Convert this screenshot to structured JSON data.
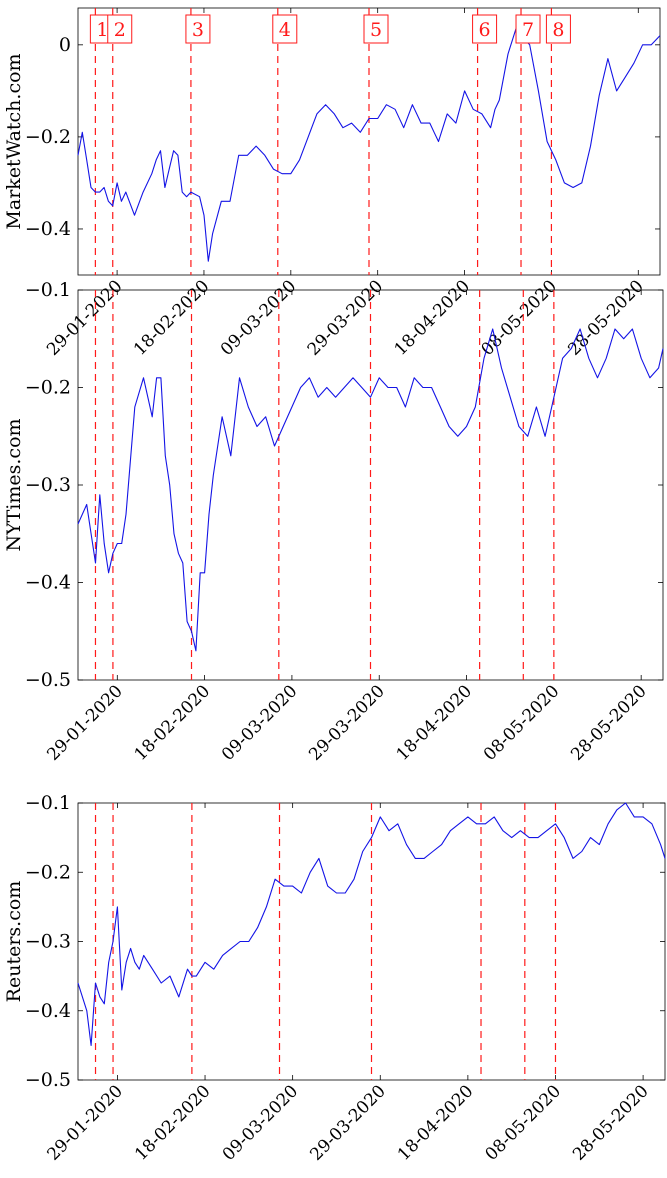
{
  "chart_data": [
    {
      "type": "line",
      "ylabel": "MarketWatch.com",
      "ylim": [
        -0.5,
        0.08
      ],
      "yticks": [
        0,
        -0.2,
        -0.4
      ],
      "ytick_labels": [
        "0",
        "−0.2",
        "−0.4"
      ],
      "xlim": [
        "2020-01-20",
        "2020-06-02"
      ],
      "xticks": [
        "2020-01-29",
        "2020-02-18",
        "2020-03-09",
        "2020-03-29",
        "2020-04-18",
        "2020-05-08",
        "2020-05-28"
      ],
      "xtick_labels": [
        "29-01-2020",
        "18-02-2020",
        "09-03-2020",
        "29-03-2020",
        "18-04-2020",
        "08-05-2020",
        "28-05-2020"
      ],
      "events": [
        {
          "date": "2020-01-24",
          "label": "1"
        },
        {
          "date": "2020-01-28",
          "label": "2"
        },
        {
          "date": "2020-02-15",
          "label": "3"
        },
        {
          "date": "2020-03-06",
          "label": "4"
        },
        {
          "date": "2020-03-27",
          "label": "5"
        },
        {
          "date": "2020-04-21",
          "label": "6"
        },
        {
          "date": "2020-05-01",
          "label": "7"
        },
        {
          "date": "2020-05-08",
          "label": "8"
        }
      ],
      "series": [
        {
          "x": [
            "2020-01-20",
            "2020-01-21",
            "2020-01-22",
            "2020-01-23",
            "2020-01-24",
            "2020-01-25",
            "2020-01-26",
            "2020-01-27",
            "2020-01-28",
            "2020-01-29",
            "2020-01-30",
            "2020-01-31",
            "2020-02-02",
            "2020-02-04",
            "2020-02-06",
            "2020-02-07",
            "2020-02-08",
            "2020-02-09",
            "2020-02-10",
            "2020-02-11",
            "2020-02-12",
            "2020-02-13",
            "2020-02-14",
            "2020-02-15",
            "2020-02-17",
            "2020-02-18",
            "2020-02-19",
            "2020-02-20",
            "2020-02-22",
            "2020-02-24",
            "2020-02-26",
            "2020-02-28",
            "2020-03-01",
            "2020-03-03",
            "2020-03-05",
            "2020-03-07",
            "2020-03-09",
            "2020-03-11",
            "2020-03-13",
            "2020-03-15",
            "2020-03-17",
            "2020-03-19",
            "2020-03-21",
            "2020-03-23",
            "2020-03-25",
            "2020-03-27",
            "2020-03-29",
            "2020-03-31",
            "2020-04-02",
            "2020-04-04",
            "2020-04-06",
            "2020-04-08",
            "2020-04-10",
            "2020-04-11",
            "2020-04-12",
            "2020-04-14",
            "2020-04-16",
            "2020-04-18",
            "2020-04-20",
            "2020-04-22",
            "2020-04-24",
            "2020-04-25",
            "2020-04-26",
            "2020-04-28",
            "2020-04-30",
            "2020-05-01",
            "2020-05-02",
            "2020-05-03",
            "2020-05-05",
            "2020-05-07",
            "2020-05-09",
            "2020-05-11",
            "2020-05-13",
            "2020-05-15",
            "2020-05-17",
            "2020-05-19",
            "2020-05-21",
            "2020-05-23",
            "2020-05-25",
            "2020-05-27",
            "2020-05-29",
            "2020-05-31",
            "2020-06-02"
          ],
          "y": [
            -0.24,
            -0.19,
            -0.25,
            -0.31,
            -0.32,
            -0.32,
            -0.31,
            -0.34,
            -0.35,
            -0.3,
            -0.34,
            -0.32,
            -0.37,
            -0.32,
            -0.28,
            -0.25,
            -0.23,
            -0.31,
            -0.27,
            -0.23,
            -0.24,
            -0.32,
            -0.33,
            -0.32,
            -0.33,
            -0.37,
            -0.47,
            -0.41,
            -0.34,
            -0.34,
            -0.24,
            -0.24,
            -0.22,
            -0.24,
            -0.27,
            -0.28,
            -0.28,
            -0.25,
            -0.2,
            -0.15,
            -0.13,
            -0.15,
            -0.18,
            -0.17,
            -0.19,
            -0.16,
            -0.16,
            -0.13,
            -0.14,
            -0.18,
            -0.13,
            -0.17,
            -0.17,
            -0.19,
            -0.21,
            -0.15,
            -0.17,
            -0.1,
            -0.14,
            -0.15,
            -0.18,
            -0.14,
            -0.12,
            -0.02,
            0.04,
            0.03,
            0.01,
            0.0,
            -0.1,
            -0.21,
            -0.25,
            -0.3,
            -0.31,
            -0.3,
            -0.22,
            -0.11,
            -0.03,
            -0.1,
            -0.07,
            -0.04,
            0.0,
            0.0,
            0.02
          ]
        }
      ]
    },
    {
      "type": "line",
      "ylabel": "NYTimes.com",
      "ylim": [
        -0.5,
        -0.1
      ],
      "yticks": [
        -0.1,
        -0.2,
        -0.3,
        -0.4,
        -0.5
      ],
      "ytick_labels": [
        "−0.1",
        "−0.2",
        "−0.3",
        "−0.4",
        "−0.5"
      ],
      "xlim": [
        "2020-01-20",
        "2020-06-02"
      ],
      "xticks": [
        "2020-01-29",
        "2020-02-18",
        "2020-03-09",
        "2020-03-29",
        "2020-04-18",
        "2020-05-08",
        "2020-05-28"
      ],
      "xtick_labels": [
        "29-01-2020",
        "18-02-2020",
        "09-03-2020",
        "29-03-2020",
        "18-04-2020",
        "08-05-2020",
        "28-05-2020"
      ],
      "events": [
        {
          "date": "2020-01-24",
          "label": ""
        },
        {
          "date": "2020-01-28",
          "label": ""
        },
        {
          "date": "2020-02-15",
          "label": ""
        },
        {
          "date": "2020-03-06",
          "label": ""
        },
        {
          "date": "2020-03-27",
          "label": ""
        },
        {
          "date": "2020-04-21",
          "label": ""
        },
        {
          "date": "2020-05-01",
          "label": ""
        },
        {
          "date": "2020-05-08",
          "label": ""
        }
      ],
      "series": [
        {
          "x": [
            "2020-01-20",
            "2020-01-22",
            "2020-01-23",
            "2020-01-24",
            "2020-01-25",
            "2020-01-26",
            "2020-01-27",
            "2020-01-28",
            "2020-01-29",
            "2020-01-30",
            "2020-01-31",
            "2020-02-02",
            "2020-02-04",
            "2020-02-06",
            "2020-02-07",
            "2020-02-08",
            "2020-02-09",
            "2020-02-10",
            "2020-02-11",
            "2020-02-12",
            "2020-02-13",
            "2020-02-14",
            "2020-02-15",
            "2020-02-16",
            "2020-02-17",
            "2020-02-18",
            "2020-02-19",
            "2020-02-20",
            "2020-02-22",
            "2020-02-24",
            "2020-02-26",
            "2020-02-28",
            "2020-03-01",
            "2020-03-03",
            "2020-03-05",
            "2020-03-07",
            "2020-03-09",
            "2020-03-11",
            "2020-03-13",
            "2020-03-15",
            "2020-03-17",
            "2020-03-19",
            "2020-03-21",
            "2020-03-23",
            "2020-03-25",
            "2020-03-27",
            "2020-03-29",
            "2020-03-31",
            "2020-04-02",
            "2020-04-04",
            "2020-04-06",
            "2020-04-08",
            "2020-04-10",
            "2020-04-12",
            "2020-04-14",
            "2020-04-16",
            "2020-04-18",
            "2020-04-20",
            "2020-04-22",
            "2020-04-24",
            "2020-04-26",
            "2020-04-28",
            "2020-04-30",
            "2020-05-02",
            "2020-05-04",
            "2020-05-06",
            "2020-05-08",
            "2020-05-10",
            "2020-05-12",
            "2020-05-14",
            "2020-05-16",
            "2020-05-18",
            "2020-05-20",
            "2020-05-22",
            "2020-05-24",
            "2020-05-26",
            "2020-05-28",
            "2020-05-30",
            "2020-06-01",
            "2020-06-02"
          ],
          "y": [
            -0.34,
            -0.32,
            -0.35,
            -0.38,
            -0.31,
            -0.36,
            -0.39,
            -0.37,
            -0.36,
            -0.36,
            -0.33,
            -0.22,
            -0.19,
            -0.23,
            -0.19,
            -0.19,
            -0.27,
            -0.3,
            -0.35,
            -0.37,
            -0.38,
            -0.44,
            -0.45,
            -0.47,
            -0.39,
            -0.39,
            -0.33,
            -0.29,
            -0.23,
            -0.27,
            -0.19,
            -0.22,
            -0.24,
            -0.23,
            -0.26,
            -0.24,
            -0.22,
            -0.2,
            -0.19,
            -0.21,
            -0.2,
            -0.21,
            -0.2,
            -0.19,
            -0.2,
            -0.21,
            -0.19,
            -0.2,
            -0.2,
            -0.22,
            -0.19,
            -0.2,
            -0.2,
            -0.22,
            -0.24,
            -0.25,
            -0.24,
            -0.22,
            -0.17,
            -0.14,
            -0.18,
            -0.21,
            -0.24,
            -0.25,
            -0.22,
            -0.25,
            -0.21,
            -0.17,
            -0.16,
            -0.14,
            -0.17,
            -0.19,
            -0.17,
            -0.14,
            -0.15,
            -0.14,
            -0.17,
            -0.19,
            -0.18,
            -0.16
          ]
        }
      ]
    },
    {
      "type": "line",
      "ylabel": "Reuters.com",
      "ylim": [
        -0.5,
        -0.1
      ],
      "yticks": [
        -0.1,
        -0.2,
        -0.3,
        -0.4,
        -0.5
      ],
      "ytick_labels": [
        "−0.1",
        "−0.2",
        "−0.3",
        "−0.4",
        "−0.5"
      ],
      "xlim": [
        "2020-01-20",
        "2020-06-02"
      ],
      "xticks": [
        "2020-01-29",
        "2020-02-18",
        "2020-03-09",
        "2020-03-29",
        "2020-04-18",
        "2020-05-08",
        "2020-05-28"
      ],
      "xtick_labels": [
        "29-01-2020",
        "18-02-2020",
        "09-03-2020",
        "29-03-2020",
        "18-04-2020",
        "08-05-2020",
        "28-05-2020"
      ],
      "events": [
        {
          "date": "2020-01-24",
          "label": ""
        },
        {
          "date": "2020-01-28",
          "label": ""
        },
        {
          "date": "2020-02-15",
          "label": ""
        },
        {
          "date": "2020-03-06",
          "label": ""
        },
        {
          "date": "2020-03-27",
          "label": ""
        },
        {
          "date": "2020-04-21",
          "label": ""
        },
        {
          "date": "2020-05-01",
          "label": ""
        },
        {
          "date": "2020-05-08",
          "label": ""
        }
      ],
      "series": [
        {
          "x": [
            "2020-01-20",
            "2020-01-22",
            "2020-01-23",
            "2020-01-24",
            "2020-01-25",
            "2020-01-26",
            "2020-01-27",
            "2020-01-28",
            "2020-01-29",
            "2020-01-30",
            "2020-01-31",
            "2020-02-01",
            "2020-02-02",
            "2020-02-03",
            "2020-02-04",
            "2020-02-06",
            "2020-02-08",
            "2020-02-10",
            "2020-02-12",
            "2020-02-14",
            "2020-02-15",
            "2020-02-16",
            "2020-02-18",
            "2020-02-20",
            "2020-02-22",
            "2020-02-24",
            "2020-02-26",
            "2020-02-28",
            "2020-03-01",
            "2020-03-03",
            "2020-03-05",
            "2020-03-07",
            "2020-03-09",
            "2020-03-11",
            "2020-03-13",
            "2020-03-15",
            "2020-03-17",
            "2020-03-19",
            "2020-03-21",
            "2020-03-23",
            "2020-03-25",
            "2020-03-27",
            "2020-03-29",
            "2020-03-31",
            "2020-04-02",
            "2020-04-04",
            "2020-04-06",
            "2020-04-08",
            "2020-04-10",
            "2020-04-12",
            "2020-04-14",
            "2020-04-16",
            "2020-04-18",
            "2020-04-20",
            "2020-04-22",
            "2020-04-24",
            "2020-04-26",
            "2020-04-28",
            "2020-04-30",
            "2020-05-02",
            "2020-05-04",
            "2020-05-06",
            "2020-05-08",
            "2020-05-10",
            "2020-05-12",
            "2020-05-14",
            "2020-05-16",
            "2020-05-18",
            "2020-05-20",
            "2020-05-22",
            "2020-05-24",
            "2020-05-26",
            "2020-05-28",
            "2020-05-30",
            "2020-06-01",
            "2020-06-02"
          ],
          "y": [
            -0.36,
            -0.4,
            -0.45,
            -0.36,
            -0.38,
            -0.39,
            -0.33,
            -0.3,
            -0.25,
            -0.37,
            -0.33,
            -0.31,
            -0.33,
            -0.34,
            -0.32,
            -0.34,
            -0.36,
            -0.35,
            -0.38,
            -0.34,
            -0.35,
            -0.35,
            -0.33,
            -0.34,
            -0.32,
            -0.31,
            -0.3,
            -0.3,
            -0.28,
            -0.25,
            -0.21,
            -0.22,
            -0.22,
            -0.23,
            -0.2,
            -0.18,
            -0.22,
            -0.23,
            -0.23,
            -0.21,
            -0.17,
            -0.15,
            -0.12,
            -0.14,
            -0.13,
            -0.16,
            -0.18,
            -0.18,
            -0.17,
            -0.16,
            -0.14,
            -0.13,
            -0.12,
            -0.13,
            -0.13,
            -0.12,
            -0.14,
            -0.15,
            -0.14,
            -0.15,
            -0.15,
            -0.14,
            -0.13,
            -0.15,
            -0.18,
            -0.17,
            -0.15,
            -0.16,
            -0.13,
            -0.11,
            -0.1,
            -0.12,
            -0.12,
            -0.13,
            -0.16,
            -0.18
          ]
        }
      ]
    }
  ],
  "colors": {
    "series": "#1414e6",
    "event_line": "#ff1a1a",
    "axis": "#000000"
  }
}
